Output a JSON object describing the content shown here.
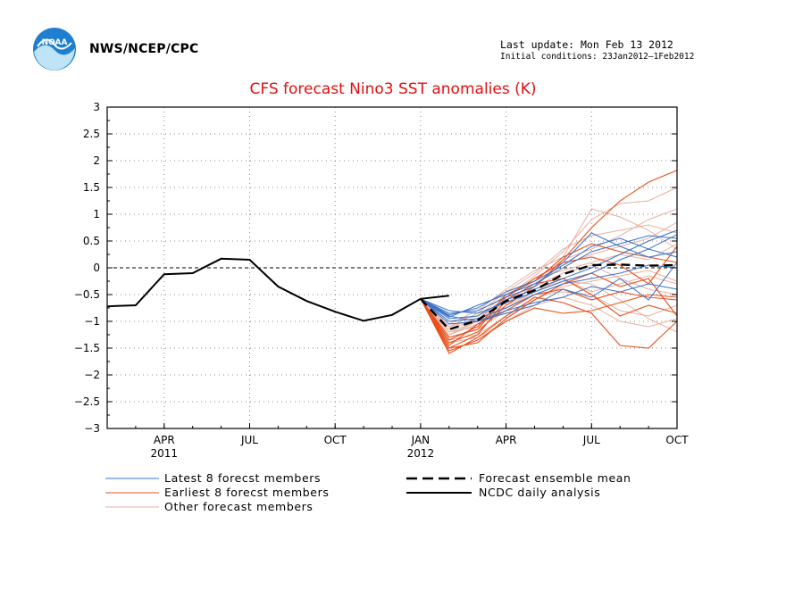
{
  "header": {
    "agency": "NWS/NCEP/CPC",
    "last_update": "Last update: Mon Feb 13 2012",
    "initial_conditions": "Initial conditions: 23Jan2012–1Feb2012",
    "logo_text": "NOAA"
  },
  "colors": {
    "latest": "#3a72c8",
    "earliest": "#e8501c",
    "other": "#e8b0a0",
    "mean": "#000000",
    "observed": "#000000",
    "title": "#e01010"
  },
  "chart_data": {
    "type": "line",
    "title": "CFS forecast Nino3 SST anomalies (K)",
    "xlabel": "",
    "ylabel": "",
    "ylim": [
      -3,
      3
    ],
    "y_ticks": [
      "3",
      "2.5",
      "2",
      "1.5",
      "1",
      "0.5",
      "0",
      "−0.5",
      "−1",
      "−1.5",
      "−2",
      "−2.5",
      "−3"
    ],
    "y_tick_values": [
      3,
      2.5,
      2,
      1.5,
      1,
      0.5,
      0,
      -0.5,
      -1,
      -1.5,
      -2,
      -2.5,
      -3
    ],
    "x_range_months": [
      0,
      20
    ],
    "x_axis_origin": "Feb 2011 (month 0)",
    "x_ticks": [
      {
        "month": 2,
        "label": "APR",
        "sublabel": "2011"
      },
      {
        "month": 5,
        "label": "JUL",
        "sublabel": ""
      },
      {
        "month": 8,
        "label": "OCT",
        "sublabel": ""
      },
      {
        "month": 11,
        "label": "JAN",
        "sublabel": "2012"
      },
      {
        "month": 14,
        "label": "APR",
        "sublabel": ""
      },
      {
        "month": 17,
        "label": "JUL",
        "sublabel": ""
      },
      {
        "month": 20,
        "label": "OCT",
        "sublabel": ""
      }
    ],
    "grid": true,
    "legend_position": "bottom",
    "legend": [
      {
        "label": "Latest 8 forecst members",
        "style": "latest"
      },
      {
        "label": "Earliest 8 forecst members",
        "style": "earliest"
      },
      {
        "label": "Other forecast members",
        "style": "other"
      },
      {
        "label": "Forecast ensemble mean",
        "style": "mean"
      },
      {
        "label": "NCDC daily analysis",
        "style": "observed"
      }
    ],
    "observed": {
      "x": [
        0,
        1,
        2,
        3,
        4,
        5,
        6,
        7,
        8,
        9,
        10,
        11,
        12
      ],
      "y": [
        -0.72,
        -0.7,
        -0.12,
        -0.1,
        0.17,
        0.15,
        -0.35,
        -0.62,
        -0.82,
        -0.99,
        -0.88,
        -0.58,
        -0.52
      ]
    },
    "ensemble_mean": {
      "x": [
        11,
        12,
        13,
        14,
        15,
        16,
        17,
        18,
        19,
        20
      ],
      "y": [
        -0.58,
        -1.15,
        -0.98,
        -0.62,
        -0.42,
        -0.12,
        0.05,
        0.06,
        0.04,
        0.05
      ]
    },
    "forecast_x": [
      11,
      12,
      13,
      14,
      15,
      16,
      17,
      18,
      19,
      20
    ],
    "latest_members": [
      [
        -0.58,
        -0.88,
        -0.75,
        -0.45,
        -0.25,
        0.05,
        0.4,
        0.55,
        0.35,
        0.62
      ],
      [
        -0.58,
        -0.95,
        -0.9,
        -0.6,
        -0.4,
        -0.2,
        0.0,
        0.25,
        0.5,
        0.7
      ],
      [
        -0.58,
        -0.85,
        -0.8,
        -0.55,
        -0.35,
        0.1,
        0.65,
        0.4,
        0.2,
        0.3
      ],
      [
        -0.58,
        -1.0,
        -0.95,
        -0.75,
        -0.5,
        -0.3,
        -0.2,
        -0.1,
        0.05,
        0.0
      ],
      [
        -0.58,
        -0.92,
        -0.7,
        -0.5,
        -0.3,
        0.0,
        0.3,
        0.45,
        0.6,
        0.55
      ],
      [
        -0.58,
        -1.05,
        -1.0,
        -0.8,
        -0.65,
        -0.55,
        -0.35,
        -0.45,
        -0.3,
        -0.4
      ],
      [
        -0.58,
        -0.8,
        -0.85,
        -0.65,
        -0.45,
        -0.25,
        -0.1,
        0.15,
        0.35,
        0.2
      ],
      [
        -0.58,
        -0.9,
        -1.0,
        -0.85,
        -0.7,
        -0.4,
        -0.55,
        -0.2,
        -0.6,
        0.1
      ]
    ],
    "earliest_members": [
      [
        -0.58,
        -1.4,
        -1.2,
        -0.7,
        -0.35,
        0.15,
        0.75,
        1.25,
        1.6,
        1.82
      ],
      [
        -0.58,
        -1.6,
        -1.3,
        -0.9,
        -0.55,
        -0.65,
        -0.85,
        -1.45,
        -1.5,
        -1.0
      ],
      [
        -0.58,
        -1.5,
        -1.25,
        -0.6,
        -0.3,
        -0.2,
        -0.5,
        -0.9,
        -0.7,
        -0.85
      ],
      [
        -0.58,
        -1.35,
        -1.1,
        -0.5,
        -0.25,
        0.2,
        0.45,
        0.3,
        0.2,
        0.1
      ],
      [
        -0.58,
        -1.45,
        -1.05,
        -0.8,
        -0.5,
        -0.4,
        -0.6,
        -0.45,
        -0.55,
        -0.6
      ],
      [
        -0.58,
        -1.55,
        -1.35,
        -1.0,
        -0.75,
        -0.85,
        -0.8,
        -0.65,
        -0.5,
        -0.55
      ],
      [
        -0.58,
        -1.3,
        -1.15,
        -0.55,
        -0.2,
        0.1,
        0.2,
        0.05,
        -0.3,
        0.4
      ],
      [
        -0.58,
        -1.5,
        -1.4,
        -0.95,
        -0.6,
        -0.3,
        -0.1,
        -0.35,
        -0.2,
        -0.9
      ]
    ],
    "other_members": [
      [
        -0.58,
        -1.2,
        -1.0,
        -0.55,
        -0.15,
        0.3,
        0.9,
        1.2,
        1.25,
        1.5
      ],
      [
        -0.58,
        -1.25,
        -1.05,
        -0.7,
        -0.45,
        -0.25,
        -0.3,
        -0.6,
        -0.95,
        -1.2
      ],
      [
        -0.58,
        -1.1,
        -0.85,
        -0.45,
        -0.1,
        0.35,
        0.6,
        0.7,
        0.8,
        0.65
      ],
      [
        -0.58,
        -1.3,
        -1.15,
        -0.8,
        -0.5,
        -0.45,
        -0.5,
        -0.8,
        -0.9,
        -0.7
      ],
      [
        -0.58,
        -1.15,
        -0.95,
        -0.6,
        -0.3,
        0.05,
        0.25,
        0.4,
        0.55,
        0.85
      ],
      [
        -0.58,
        -1.35,
        -1.25,
        -0.9,
        -0.6,
        -0.35,
        -0.25,
        -0.15,
        -0.05,
        -0.25
      ],
      [
        -0.58,
        -1.05,
        -0.8,
        -0.4,
        -0.05,
        0.2,
        1.1,
        0.95,
        0.7,
        0.35
      ],
      [
        -0.58,
        -1.2,
        -1.1,
        -0.65,
        -0.35,
        -0.1,
        0.05,
        -0.2,
        -0.4,
        -0.5
      ],
      [
        -0.58,
        -1.0,
        -0.9,
        -0.5,
        -0.25,
        0.15,
        0.35,
        0.6,
        0.9,
        1.1
      ],
      [
        -0.58,
        -1.4,
        -1.3,
        -1.0,
        -0.7,
        -0.55,
        -0.7,
        -1.0,
        -1.1,
        -0.95
      ],
      [
        -0.58,
        -1.1,
        -0.95,
        -0.55,
        -0.2,
        -0.05,
        0.1,
        0.25,
        0.15,
        0.45
      ],
      [
        -0.58,
        -1.25,
        -1.0,
        -0.75,
        -0.45,
        -0.2,
        -0.45,
        -0.3,
        -0.15,
        -0.3
      ]
    ]
  }
}
